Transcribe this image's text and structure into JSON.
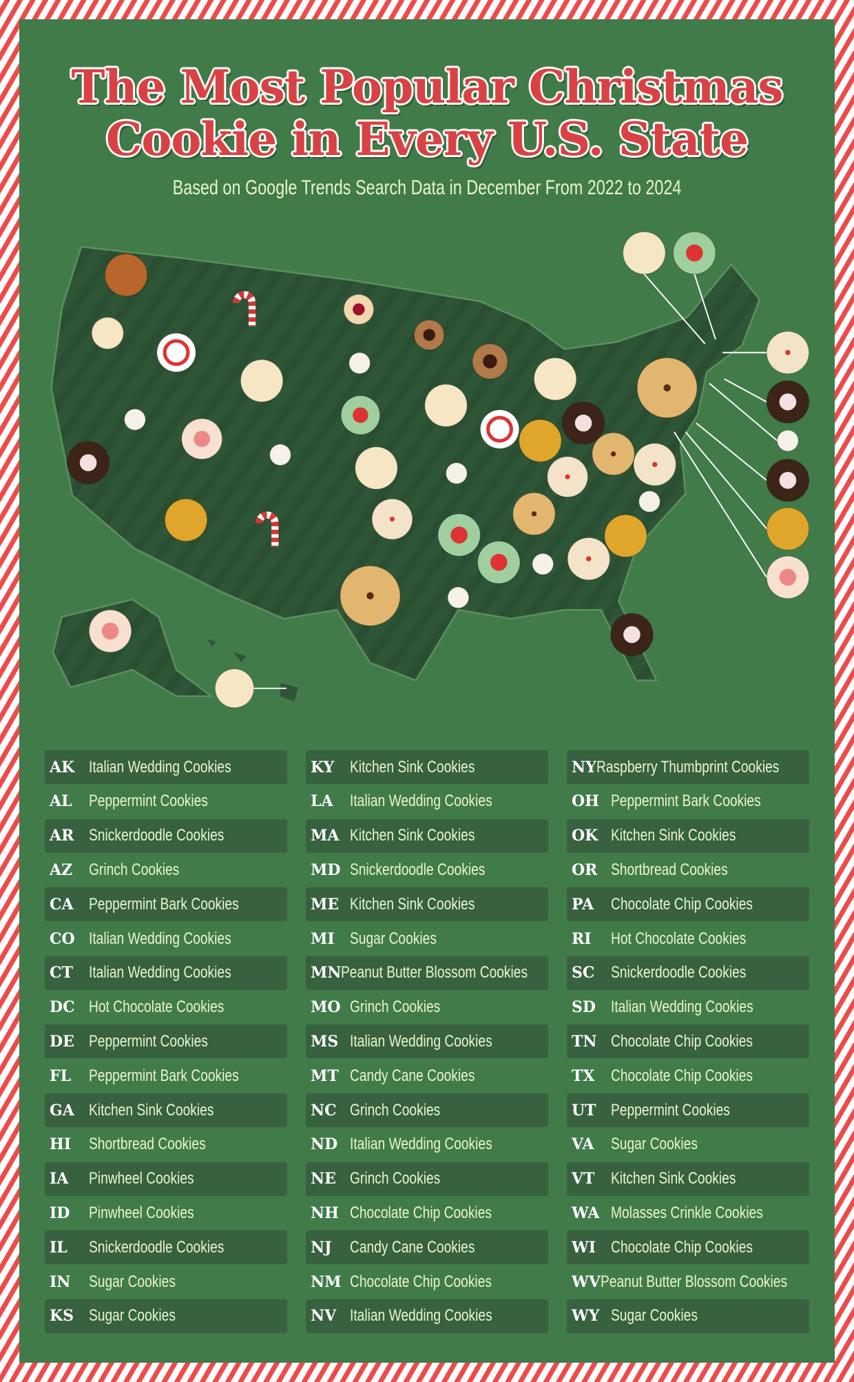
{
  "title": {
    "line1": "The Most Popular Christmas",
    "line2": "Cookie in Every U.S. State"
  },
  "subtitle": "Based on Google Trends Search Data in December From 2022 to 2024",
  "colors": {
    "background": "#417b4a",
    "title_red": "#d94244",
    "stripe_red": "#ef4a4a",
    "map": "#2f5537",
    "row_dark": "#37613f",
    "text": "#eaf5cf"
  },
  "states": [
    {
      "abbr": "AK",
      "cookie": "Italian Wedding Cookies"
    },
    {
      "abbr": "AL",
      "cookie": "Peppermint Cookies"
    },
    {
      "abbr": "AR",
      "cookie": "Snickerdoodle Cookies"
    },
    {
      "abbr": "AZ",
      "cookie": "Grinch Cookies"
    },
    {
      "abbr": "CA",
      "cookie": "Peppermint Bark Cookies"
    },
    {
      "abbr": "CO",
      "cookie": "Italian Wedding Cookies"
    },
    {
      "abbr": "CT",
      "cookie": "Italian Wedding Cookies"
    },
    {
      "abbr": "DC",
      "cookie": "Hot Chocolate Cookies"
    },
    {
      "abbr": "DE",
      "cookie": "Peppermint Cookies"
    },
    {
      "abbr": "FL",
      "cookie": "Peppermint Bark Cookies"
    },
    {
      "abbr": "GA",
      "cookie": "Kitchen Sink Cookies"
    },
    {
      "abbr": "HI",
      "cookie": "Shortbread Cookies"
    },
    {
      "abbr": "IA",
      "cookie": "Pinwheel Cookies"
    },
    {
      "abbr": "ID",
      "cookie": "Pinwheel Cookies"
    },
    {
      "abbr": "IL",
      "cookie": "Snickerdoodle Cookies"
    },
    {
      "abbr": "IN",
      "cookie": "Sugar Cookies"
    },
    {
      "abbr": "KS",
      "cookie": "Sugar Cookies"
    },
    {
      "abbr": "KY",
      "cookie": "Kitchen Sink Cookies"
    },
    {
      "abbr": "LA",
      "cookie": "Italian Wedding Cookies"
    },
    {
      "abbr": "MA",
      "cookie": "Kitchen Sink Cookies"
    },
    {
      "abbr": "MD",
      "cookie": "Snickerdoodle Cookies"
    },
    {
      "abbr": "ME",
      "cookie": "Kitchen Sink Cookies"
    },
    {
      "abbr": "MI",
      "cookie": "Sugar Cookies"
    },
    {
      "abbr": "MN",
      "cookie": "Peanut Butter Blossom Cookies"
    },
    {
      "abbr": "MO",
      "cookie": "Grinch Cookies"
    },
    {
      "abbr": "MS",
      "cookie": "Italian Wedding Cookies"
    },
    {
      "abbr": "MT",
      "cookie": "Candy Cane Cookies"
    },
    {
      "abbr": "NC",
      "cookie": "Grinch Cookies"
    },
    {
      "abbr": "ND",
      "cookie": "Italian Wedding Cookies"
    },
    {
      "abbr": "NE",
      "cookie": "Grinch Cookies"
    },
    {
      "abbr": "NH",
      "cookie": "Chocolate Chip Cookies"
    },
    {
      "abbr": "NJ",
      "cookie": "Candy Cane Cookies"
    },
    {
      "abbr": "NM",
      "cookie": "Chocolate Chip Cookies"
    },
    {
      "abbr": "NV",
      "cookie": "Italian Wedding Cookies"
    },
    {
      "abbr": "NY",
      "cookie": "Raspberry Thumbprint Cookies"
    },
    {
      "abbr": "OH",
      "cookie": "Peppermint Bark Cookies"
    },
    {
      "abbr": "OK",
      "cookie": "Kitchen Sink Cookies"
    },
    {
      "abbr": "OR",
      "cookie": "Shortbread Cookies"
    },
    {
      "abbr": "PA",
      "cookie": "Chocolate Chip Cookies"
    },
    {
      "abbr": "RI",
      "cookie": "Hot Chocolate Cookies"
    },
    {
      "abbr": "SC",
      "cookie": "Snickerdoodle Cookies"
    },
    {
      "abbr": "SD",
      "cookie": "Italian Wedding Cookies"
    },
    {
      "abbr": "TN",
      "cookie": "Chocolate Chip Cookies"
    },
    {
      "abbr": "TX",
      "cookie": "Chocolate Chip Cookies"
    },
    {
      "abbr": "UT",
      "cookie": "Peppermint Cookies"
    },
    {
      "abbr": "VA",
      "cookie": "Sugar Cookies"
    },
    {
      "abbr": "VT",
      "cookie": "Kitchen Sink Cookies"
    },
    {
      "abbr": "WA",
      "cookie": "Molasses Crinkle Cookies"
    },
    {
      "abbr": "WI",
      "cookie": "Chocolate Chip Cookies"
    },
    {
      "abbr": "WV",
      "cookie": "Peanut Butter Blossom Cookies"
    },
    {
      "abbr": "WY",
      "cookie": "Sugar Cookies"
    }
  ]
}
